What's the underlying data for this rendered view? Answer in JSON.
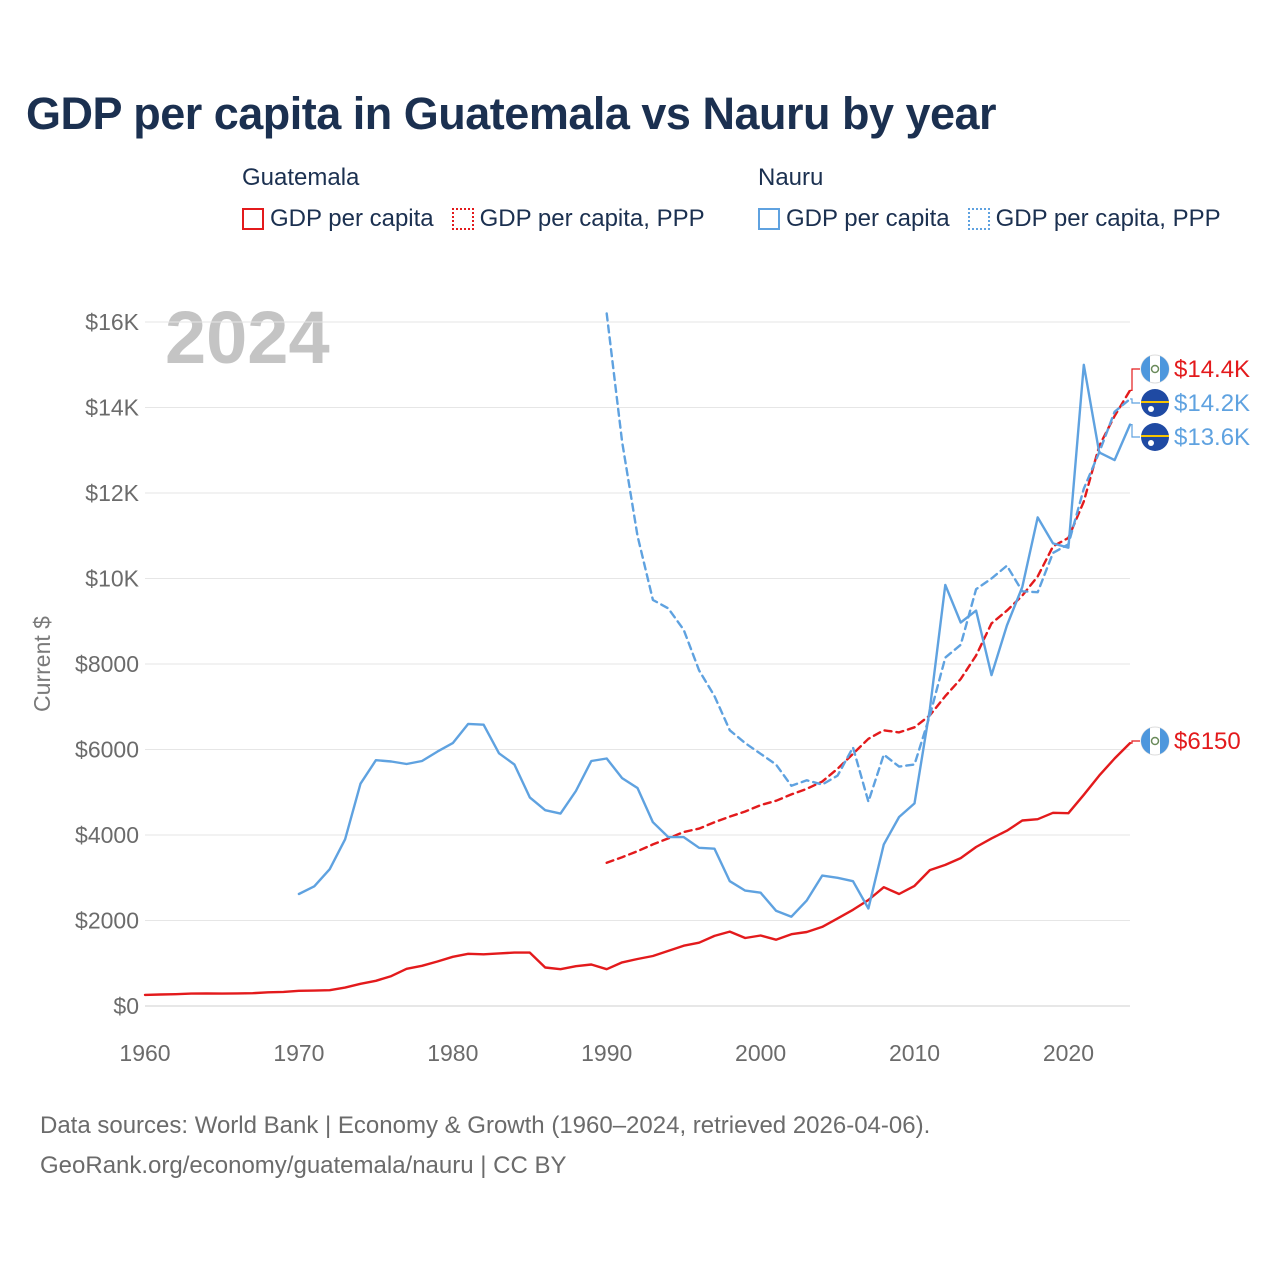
{
  "title": "GDP per capita in Guatemala vs Nauru by year",
  "legend": {
    "groups": [
      {
        "name": "Guatemala",
        "items": [
          {
            "label": "GDP per capita",
            "color": "#e31a1c",
            "style": "solid"
          },
          {
            "label": "GDP per capita, PPP",
            "color": "#e31a1c",
            "style": "dotted"
          }
        ]
      },
      {
        "name": "Nauru",
        "items": [
          {
            "label": "GDP per capita",
            "color": "#5fa2e0",
            "style": "solid"
          },
          {
            "label": "GDP per capita, PPP",
            "color": "#5fa2e0",
            "style": "dotted"
          }
        ]
      }
    ]
  },
  "sources": {
    "line1": "Data sources: World Bank | Economy & Growth (1960–2024, retrieved 2026-04-06).",
    "line2": "GeoRank.org/economy/guatemala/nauru | CC BY"
  },
  "chart_data": {
    "type": "line",
    "title": "GDP per capita in Guatemala vs Nauru by year",
    "watermark": "2024",
    "xlabel": "",
    "ylabel": "Current $",
    "xlim": [
      1960,
      2024
    ],
    "ylim": [
      0,
      16000
    ],
    "x_ticks": [
      1960,
      1970,
      1980,
      1990,
      2000,
      2010,
      2020
    ],
    "x_tick_labels": [
      "1960",
      "1970",
      "1980",
      "1990",
      "2000",
      "2010",
      "2020"
    ],
    "y_ticks": [
      0,
      2000,
      4000,
      6000,
      8000,
      10000,
      12000,
      14000,
      16000
    ],
    "y_tick_labels": [
      "$0",
      "$2000",
      "$4000",
      "$6000",
      "$8000",
      "$10K",
      "$12K",
      "$14K",
      "$16K"
    ],
    "grid": true,
    "series": [
      {
        "name": "Guatemala GDP per capita",
        "color": "#e31a1c",
        "dash": "solid",
        "x": [
          1960,
          1961,
          1962,
          1963,
          1964,
          1965,
          1966,
          1967,
          1968,
          1969,
          1970,
          1971,
          1972,
          1973,
          1974,
          1975,
          1976,
          1977,
          1978,
          1979,
          1980,
          1981,
          1982,
          1983,
          1984,
          1985,
          1986,
          1987,
          1988,
          1989,
          1990,
          1991,
          1992,
          1993,
          1994,
          1995,
          1996,
          1997,
          1998,
          1999,
          2000,
          2001,
          2002,
          2003,
          2004,
          2005,
          2006,
          2007,
          2008,
          2009,
          2010,
          2011,
          2012,
          2013,
          2014,
          2015,
          2016,
          2017,
          2018,
          2019,
          2020,
          2021,
          2022,
          2023,
          2024
        ],
        "values": [
          260,
          270,
          275,
          290,
          295,
          290,
          295,
          300,
          320,
          330,
          355,
          360,
          370,
          430,
          520,
          590,
          700,
          870,
          940,
          1040,
          1150,
          1220,
          1210,
          1230,
          1250,
          1250,
          900,
          860,
          930,
          970,
          860,
          1020,
          1100,
          1170,
          1290,
          1410,
          1480,
          1640,
          1740,
          1590,
          1650,
          1550,
          1680,
          1730,
          1850,
          2050,
          2250,
          2480,
          2780,
          2620,
          2810,
          3180,
          3300,
          3460,
          3720,
          3920,
          4100,
          4340,
          4370,
          4520,
          4510,
          4940,
          5390,
          5790,
          6150
        ],
        "end_label": "$6150"
      },
      {
        "name": "Guatemala GDP per capita, PPP",
        "color": "#e31a1c",
        "dash": "dashed",
        "x": [
          1990,
          1991,
          1992,
          1993,
          1994,
          1995,
          1996,
          1997,
          1998,
          1999,
          2000,
          2001,
          2002,
          2003,
          2004,
          2005,
          2006,
          2007,
          2008,
          2009,
          2010,
          2011,
          2012,
          2013,
          2014,
          2015,
          2016,
          2017,
          2018,
          2019,
          2020,
          2021,
          2022,
          2023,
          2024
        ],
        "values": [
          3350,
          3480,
          3620,
          3780,
          3920,
          4070,
          4150,
          4300,
          4430,
          4550,
          4700,
          4800,
          4950,
          5080,
          5250,
          5550,
          5900,
          6250,
          6450,
          6400,
          6520,
          6800,
          7250,
          7650,
          8200,
          8950,
          9250,
          9600,
          10050,
          10750,
          10950,
          11800,
          13100,
          13800,
          14400
        ],
        "end_label": "$14.4K"
      },
      {
        "name": "Nauru GDP per capita",
        "color": "#5fa2e0",
        "dash": "solid",
        "x": [
          1970,
          1971,
          1972,
          1973,
          1974,
          1975,
          1976,
          1977,
          1978,
          1979,
          1980,
          1981,
          1982,
          1983,
          1984,
          1985,
          1986,
          1987,
          1988,
          1989,
          1990,
          1991,
          1992,
          1993,
          1994,
          1995,
          1996,
          1997,
          1998,
          1999,
          2000,
          2001,
          2002,
          2003,
          2004,
          2005,
          2006,
          2007,
          2008,
          2009,
          2010,
          2011,
          2012,
          2013,
          2014,
          2015,
          2016,
          2017,
          2018,
          2019,
          2020,
          2021,
          2022,
          2023,
          2024
        ],
        "values": [
          2620,
          2800,
          3200,
          3900,
          5200,
          5750,
          5720,
          5660,
          5730,
          5950,
          6150,
          6600,
          6580,
          5910,
          5650,
          4880,
          4580,
          4500,
          5030,
          5730,
          5790,
          5330,
          5100,
          4300,
          3950,
          3950,
          3700,
          3680,
          2920,
          2700,
          2650,
          2230,
          2090,
          2470,
          3050,
          3000,
          2920,
          2280,
          3780,
          4420,
          4740,
          6950,
          9850,
          8970,
          9250,
          7740,
          8900,
          9800,
          11430,
          10820,
          10720,
          15000,
          12950,
          12770,
          13600
        ],
        "end_label": "$13.6K"
      },
      {
        "name": "Nauru GDP per capita, PPP",
        "color": "#5fa2e0",
        "dash": "dashed",
        "x": [
          1990,
          1991,
          1992,
          1993,
          1994,
          1995,
          1996,
          1997,
          1998,
          1999,
          2000,
          2001,
          2002,
          2003,
          2004,
          2005,
          2006,
          2007,
          2008,
          2009,
          2010,
          2011,
          2012,
          2013,
          2014,
          2015,
          2016,
          2017,
          2018,
          2019,
          2020,
          2021,
          2022,
          2023,
          2024
        ],
        "values": [
          16200,
          13200,
          11000,
          9500,
          9300,
          8800,
          7850,
          7250,
          6450,
          6150,
          5900,
          5650,
          5150,
          5280,
          5180,
          5390,
          6050,
          4780,
          5880,
          5600,
          5650,
          6800,
          8150,
          8450,
          9750,
          10000,
          10300,
          9700,
          9680,
          10600,
          10800,
          12100,
          12950,
          13900,
          14200
        ],
        "end_label": "$14.2K"
      }
    ]
  }
}
